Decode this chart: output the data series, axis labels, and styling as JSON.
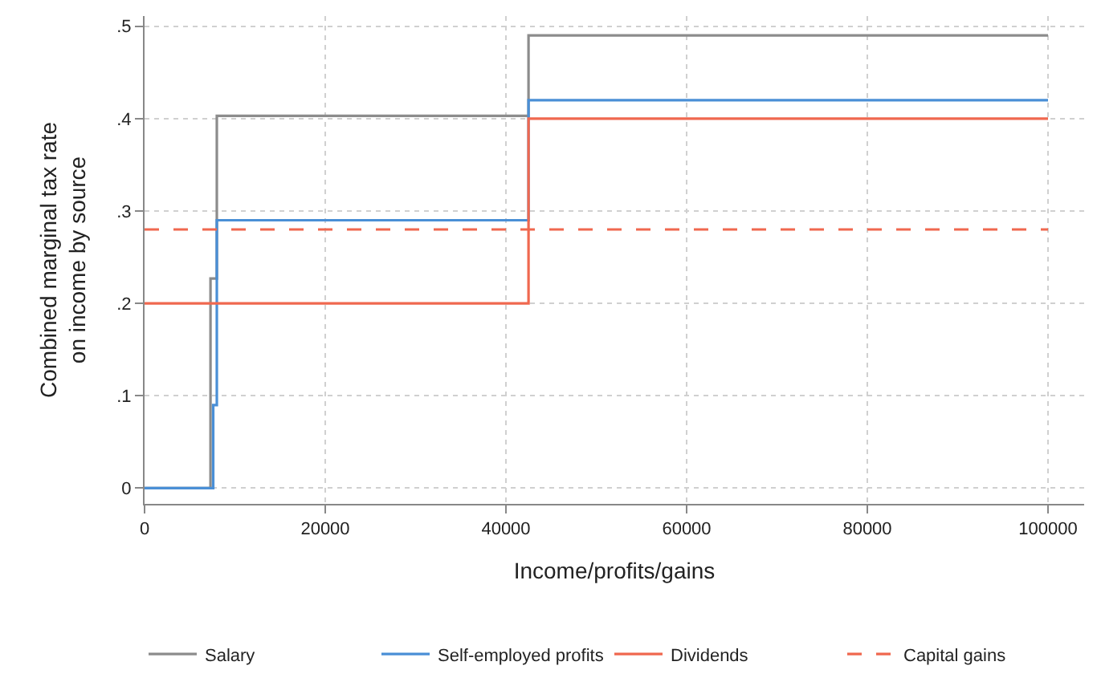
{
  "chart_data": {
    "type": "step",
    "xlabel": "Income/profits/gains",
    "ylabel": "Combined marginal tax rate\non income by source",
    "series": [
      {
        "name": "Salary",
        "color": "#8c8c8c",
        "x": [
          0,
          7300,
          8000,
          42500,
          100000
        ],
        "values": [
          0,
          0.227,
          0.403,
          0.49,
          0.49
        ]
      },
      {
        "name": "Self-employed profits",
        "color": "#4a8fd6",
        "x": [
          0,
          7600,
          8000,
          42500,
          100000
        ],
        "values": [
          0,
          0.09,
          0.29,
          0.42,
          0.42
        ]
      },
      {
        "name": "Dividends",
        "color": "#f0684f",
        "x": [
          0,
          42500,
          100000
        ],
        "values": [
          0.2,
          0.4,
          0.4
        ]
      },
      {
        "name": "Capital gains",
        "color": "#f0684f",
        "x": [
          0,
          100000
        ],
        "values": [
          0.28,
          0.28
        ],
        "line_style": "dashed"
      }
    ],
    "xlim": [
      0,
      104000
    ],
    "xticks": [
      0,
      20000,
      40000,
      60000,
      80000,
      100000
    ],
    "ylim": [
      -0.017,
      0.511
    ],
    "yticks": [
      0,
      {
        "value": 0.1,
        "label": ".1"
      },
      {
        "value": 0.2,
        "label": ".2"
      },
      {
        "value": 0.3,
        "label": ".3"
      },
      {
        "value": 0.4,
        "label": ".4"
      },
      {
        "value": 0.5,
        "label": ".5"
      }
    ],
    "grid": true,
    "legend": "bottom",
    "line_style": "solid"
  }
}
